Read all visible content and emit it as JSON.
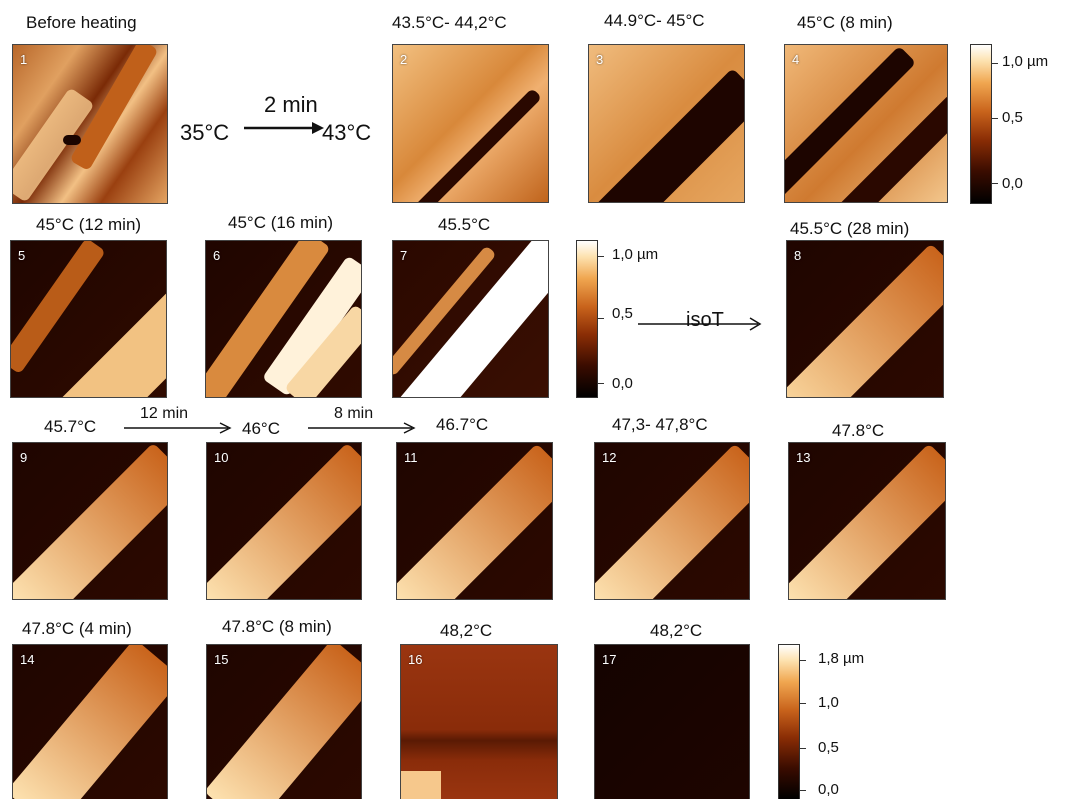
{
  "title_before": "Before heating",
  "panels": [
    {
      "num": "1",
      "label": "Before heating"
    },
    {
      "num": "2",
      "label": "43.5°C- 44,2°C"
    },
    {
      "num": "3",
      "label": "44.9°C- 45°C"
    },
    {
      "num": "4",
      "label": "45°C  (8 min)"
    },
    {
      "num": "5",
      "label": "45°C  (12 min)"
    },
    {
      "num": "6",
      "label": "45°C  (16 min)"
    },
    {
      "num": "7",
      "label": "45.5°C"
    },
    {
      "num": "8",
      "label": "45.5°C  (28 min)"
    },
    {
      "num": "9",
      "label": "45.7°C"
    },
    {
      "num": "10",
      "label": "46°C"
    },
    {
      "num": "11",
      "label": "46.7°C"
    },
    {
      "num": "12",
      "label": "47,3- 47,8°C"
    },
    {
      "num": "13",
      "label": "47.8°C"
    },
    {
      "num": "14",
      "label": "47.8°C (4 min)"
    },
    {
      "num": "15",
      "label": "47.8°C   (8 min)"
    },
    {
      "num": "16",
      "label": "48,2°C"
    },
    {
      "num": "17",
      "label": "48,2°C"
    }
  ],
  "heating_step": {
    "from": "35°C",
    "to": "43°C",
    "duration": "2 min"
  },
  "isoT_label": "isoT",
  "row3_arrows": [
    {
      "label": "12 min"
    },
    {
      "label": "8 min"
    }
  ],
  "colorbar1": {
    "top": "1,0 µm",
    "mid": "0,5",
    "bottom": "0,0"
  },
  "colorbar2": {
    "top": "1,0 µm",
    "mid": "0,5",
    "bottom": "0,0"
  },
  "colorbar3": {
    "top": "1,8 µm",
    "mid1": "1,0",
    "mid2": "0,5",
    "bottom": "0,0"
  },
  "colors": {
    "dark": "#2c0900",
    "mid": "#c9641c",
    "bright": "#fde2b0"
  }
}
